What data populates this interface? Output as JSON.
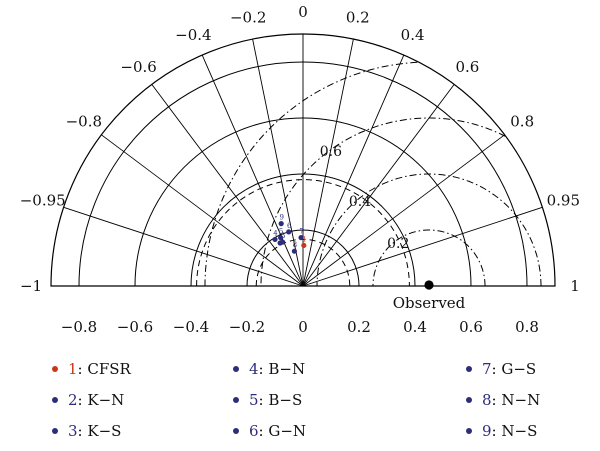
{
  "chart_data": {
    "type": "scatter",
    "subtype": "taylor-diagram",
    "title": "",
    "correlation_ticks": [
      {
        "label": "0",
        "value": 0
      },
      {
        "label": "0.2",
        "value": 0.2
      },
      {
        "label": "0.4",
        "value": 0.4
      },
      {
        "label": "0.6",
        "value": 0.6
      },
      {
        "label": "0.8",
        "value": 0.8
      },
      {
        "label": "0.95",
        "value": 0.95
      },
      {
        "label": "1",
        "value": 1
      },
      {
        "label": "−0.2",
        "value": -0.2
      },
      {
        "label": "−0.4",
        "value": -0.4
      },
      {
        "label": "−0.6",
        "value": -0.6
      },
      {
        "label": "−0.8",
        "value": -0.8
      },
      {
        "label": "−0.95",
        "value": -0.95
      },
      {
        "label": "−1",
        "value": -1
      }
    ],
    "std_axis_ticks": [
      {
        "label": "−0.8",
        "value": -0.8
      },
      {
        "label": "−0.6",
        "value": -0.6
      },
      {
        "label": "−0.4",
        "value": -0.4
      },
      {
        "label": "−0.2",
        "value": -0.2
      },
      {
        "label": "0",
        "value": 0
      },
      {
        "label": "0.2",
        "value": 0.2
      },
      {
        "label": "0.4",
        "value": 0.4
      },
      {
        "label": "0.6",
        "value": 0.6
      },
      {
        "label": "0.8",
        "value": 0.8
      }
    ],
    "std_arcs": [
      0.2,
      0.4,
      0.6,
      0.8
    ],
    "std_arcs_dashed": [
      0.167,
      0.38
    ],
    "rms_arcs": [
      {
        "label": "0.2",
        "value": 0.2
      },
      {
        "label": "0.4",
        "value": 0.4
      },
      {
        "label": "0.6",
        "value": 0.6
      },
      {
        "label": "",
        "value": 0.8
      }
    ],
    "std_range": [
      0,
      0.9
    ],
    "observed": {
      "label": "Observed",
      "std": 0.45
    },
    "points": [
      {
        "id": "1",
        "name": "CFSR",
        "std": 0.145,
        "corr": 0.02,
        "color": "#c8371b"
      },
      {
        "id": "2",
        "name": "K−N",
        "std": 0.174,
        "corr": -0.47,
        "color": "#2d2d7c"
      },
      {
        "id": "3",
        "name": "K−S",
        "std": 0.173,
        "corr": -0.42,
        "color": "#2d2d7c"
      },
      {
        "id": "4",
        "name": "B−N",
        "std": 0.194,
        "corr": -0.515,
        "color": "#2d2d7c"
      },
      {
        "id": "5",
        "name": "B−S",
        "std": 0.19,
        "corr": -0.42,
        "color": "#2d2d7c"
      },
      {
        "id": "6",
        "name": "G−N",
        "std": 0.2,
        "corr": -0.255,
        "color": "#2d2d7c"
      },
      {
        "id": "7",
        "name": "G−S",
        "std": 0.173,
        "corr": -0.04,
        "color": "#2d2d7c"
      },
      {
        "id": "8",
        "name": "N−N",
        "std": 0.128,
        "corr": -0.24,
        "color": "#2d2d7c"
      },
      {
        "id": "9",
        "name": "N−S",
        "std": 0.236,
        "corr": -0.33,
        "color": "#2d2d7c"
      }
    ],
    "legend": {
      "placement": "bottom",
      "columns": [
        [
          "1",
          "2",
          "3"
        ],
        [
          "4",
          "5",
          "6"
        ],
        [
          "7",
          "8",
          "9"
        ]
      ]
    },
    "colors": {
      "cfsr": "#c8371b",
      "model": "#2d2d7c",
      "observed": "#000000"
    }
  }
}
